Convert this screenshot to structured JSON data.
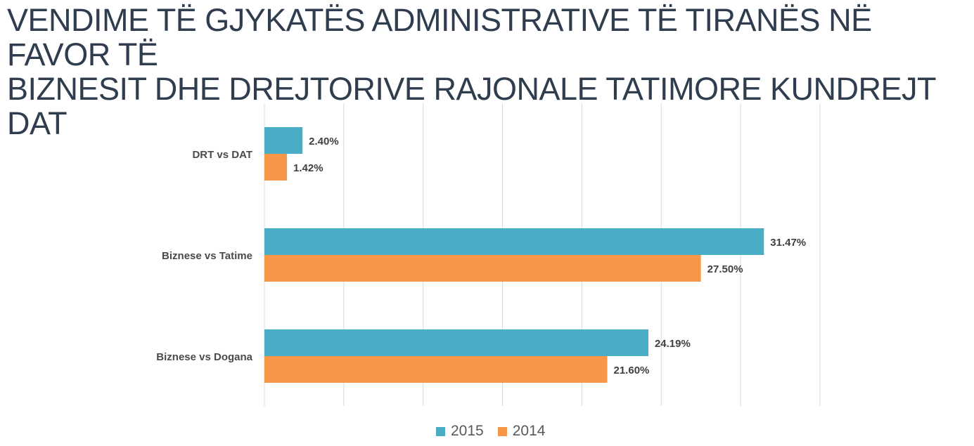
{
  "title": "VENDIME TË GJYKATËS ADMINISTRATIVE TË TIRANËS NË FAVOR TË\nBIZNESIT DHE DREJTORIVE RAJONALE TATIMORE KUNDREJT DAT",
  "chart_data": {
    "type": "bar",
    "orientation": "horizontal",
    "title": "VENDIME TË GJYKATËS ADMINISTRATIVE TË TIRANËS NË FAVOR TË BIZNESIT DHE DREJTORIVE RAJONALE TATIMORE KUNDREJT DAT",
    "categories": [
      "DRT vs DAT",
      "Biznese vs Tatime",
      "Biznese vs Dogana"
    ],
    "series": [
      {
        "name": "2015",
        "color": "#4bacc6",
        "values": [
          2.4,
          31.47,
          24.19
        ],
        "labels": [
          "2.40%",
          "31.47%",
          "24.19%"
        ]
      },
      {
        "name": "2014",
        "color": "#f79646",
        "values": [
          1.42,
          27.5,
          21.6
        ],
        "labels": [
          "1.42%",
          "27.50%",
          "21.60%"
        ]
      }
    ],
    "xlim": [
      0,
      35
    ],
    "grid": true,
    "axis_tick_labels_visible": false,
    "legend_position": "bottom"
  }
}
